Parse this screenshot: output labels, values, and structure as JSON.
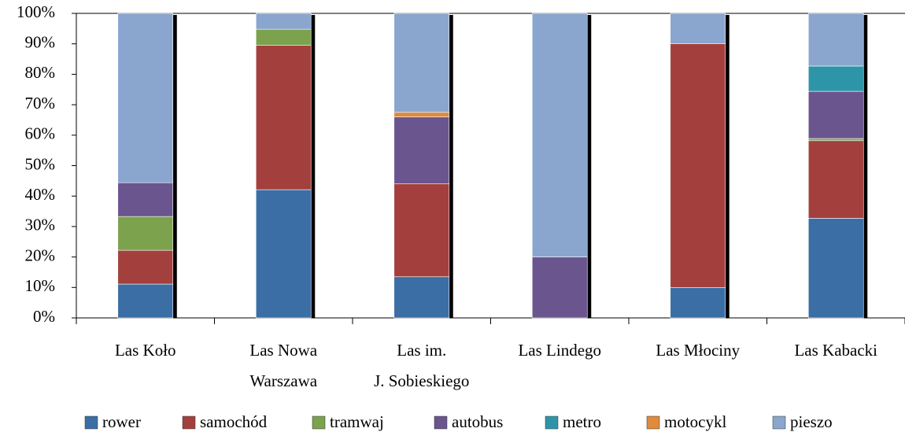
{
  "chart_data": {
    "type": "stacked_bar",
    "categories": [
      [
        "Las Koło"
      ],
      [
        "Las Nowa",
        "Warszawa"
      ],
      [
        "Las im.",
        "J. Sobieskiego"
      ],
      [
        "Las Lindego"
      ],
      [
        "Las Młociny"
      ],
      [
        "Las Kabacki"
      ]
    ],
    "series": [
      {
        "name": "rower",
        "color": "#3a6ea5",
        "values": [
          11.1,
          42.1,
          13.5,
          0,
          10,
          32.7
        ]
      },
      {
        "name": "samochód",
        "color": "#a3403d",
        "values": [
          11.1,
          47.4,
          30.5,
          0,
          80,
          25.5
        ]
      },
      {
        "name": "tramwaj",
        "color": "#7da24d",
        "values": [
          11.1,
          5.3,
          0,
          0,
          0,
          0.7
        ]
      },
      {
        "name": "autobus",
        "color": "#6b558f",
        "values": [
          11.1,
          0,
          22,
          20,
          0,
          15.5
        ]
      },
      {
        "name": "metro",
        "color": "#2e95a8",
        "values": [
          0,
          0,
          0,
          0,
          0,
          8.3
        ]
      },
      {
        "name": "motocykl",
        "color": "#e08a3c",
        "values": [
          0,
          0,
          1.5,
          0,
          0,
          0
        ]
      },
      {
        "name": "pieszo",
        "color": "#8aa6cf",
        "values": [
          55.6,
          5.2,
          32.5,
          80,
          10,
          17.3
        ]
      }
    ],
    "ylim": [
      0,
      100
    ],
    "yticks": [
      {
        "value": 0,
        "label": "0%"
      },
      {
        "value": 10,
        "label": "10%"
      },
      {
        "value": 20,
        "label": "20%"
      },
      {
        "value": 30,
        "label": "30%"
      },
      {
        "value": 40,
        "label": "40%"
      },
      {
        "value": 50,
        "label": "50%"
      },
      {
        "value": 60,
        "label": "60%"
      },
      {
        "value": 70,
        "label": "70%"
      },
      {
        "value": 80,
        "label": "80%"
      },
      {
        "value": 90,
        "label": "90%"
      },
      {
        "value": 100,
        "label": "100%"
      }
    ],
    "legend": "bottom"
  }
}
